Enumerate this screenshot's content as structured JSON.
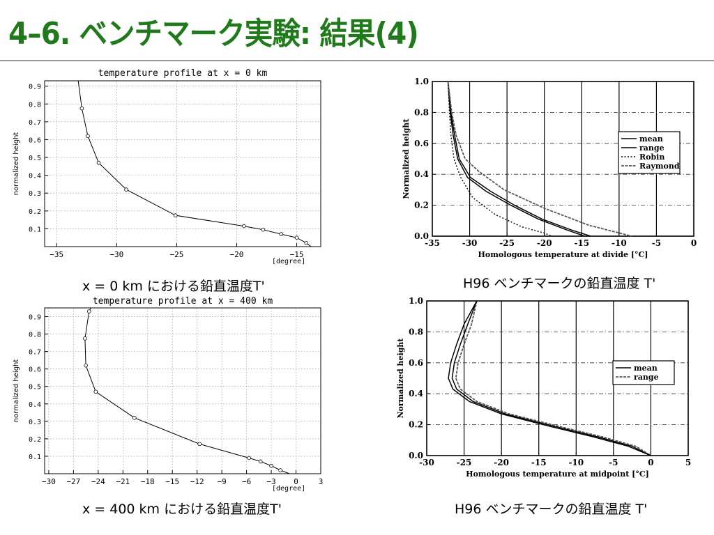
{
  "slide": {
    "title": "4–6. ベンチマーク実験: 結果(4)",
    "captions": [
      "x = 0 km における鉛直温度T'",
      "H96 ベンチマークの鉛直温度 T'",
      "x = 400 km における鉛直温度T'",
      "H96 ベンチマークの鉛直温度 T'"
    ],
    "colors": {
      "title": "#207a1c",
      "rule": "#9a9a9a"
    }
  },
  "chart_data": [
    {
      "type": "line",
      "title": "temperature   profile at x = 0 km",
      "ylabel": "normalized height",
      "xunit": "[degree]",
      "xlim": [
        -36,
        -13
      ],
      "ylim": [
        0,
        0.93
      ],
      "xticks": [
        -35,
        -30,
        -25,
        -20,
        -15
      ],
      "yticks": [
        0.1,
        0.2,
        0.3,
        0.4,
        0.5,
        0.6,
        0.7,
        0.8,
        0.9
      ],
      "xtick_labels": [
        "−35",
        "−30",
        "−25",
        "−20",
        "−15"
      ],
      "ytick_labels": [
        "0.1",
        "0.2",
        "0.3",
        "0.4",
        "0.5",
        "0.6",
        "0.7",
        "0.8",
        "0.9"
      ],
      "grid": true,
      "series": [
        {
          "x": [
            -13.8,
            -14.2,
            -15.0,
            -16.3,
            -17.8,
            -19.4,
            -25.1,
            -29.2,
            -31.5,
            -32.4,
            -32.9,
            -33.2
          ],
          "y": [
            0.0,
            0.02,
            0.05,
            0.07,
            0.095,
            0.115,
            0.175,
            0.32,
            0.47,
            0.62,
            0.775,
            0.93
          ],
          "markers": true
        }
      ]
    },
    {
      "type": "line",
      "ylabel": "Normalized height",
      "xlabel": "Homologous temperature at divide  [°C]",
      "xlim": [
        -35,
        0
      ],
      "ylim": [
        0,
        1
      ],
      "xticks": [
        -35,
        -30,
        -25,
        -20,
        -15,
        -10,
        -5,
        0
      ],
      "yticks": [
        0.0,
        0.2,
        0.4,
        0.6,
        0.8,
        1.0
      ],
      "xtick_labels": [
        "-35",
        "-30",
        "-25",
        "-20",
        "-15",
        "-10",
        "-5",
        "0"
      ],
      "ytick_labels": [
        "0.0",
        "0.2",
        "0.4",
        "0.6",
        "0.8",
        "1.0"
      ],
      "grid": true,
      "legend": "right",
      "series": [
        {
          "name": "mean",
          "dash": "solid",
          "x": [
            -32.9,
            -32.6,
            -32.2,
            -31.6,
            -30.3,
            -27.8,
            -24.5,
            -20.8,
            -17.0,
            -14.6
          ],
          "y": [
            1.0,
            0.8,
            0.65,
            0.5,
            0.38,
            0.29,
            0.2,
            0.11,
            0.04,
            0.0
          ]
        },
        {
          "name": "range",
          "dash": "solid",
          "x": [
            -32.9,
            -32.5,
            -32.0,
            -31.4,
            -29.9,
            -27.2,
            -24.0,
            -20.3,
            -16.4,
            -13.8
          ],
          "y": [
            1.0,
            0.8,
            0.65,
            0.5,
            0.38,
            0.29,
            0.2,
            0.11,
            0.04,
            0.0
          ]
        },
        {
          "name": "Robin",
          "dash": "dotted",
          "x": [
            -32.9,
            -32.7,
            -32.5,
            -32.1,
            -31.2,
            -29.6,
            -26.6,
            -23.0,
            -20.0,
            -19.0
          ],
          "y": [
            1.0,
            0.8,
            0.65,
            0.5,
            0.38,
            0.25,
            0.14,
            0.06,
            0.02,
            0.0
          ]
        },
        {
          "name": "Raymond",
          "dash": "gray",
          "x": [
            -32.9,
            -32.4,
            -31.8,
            -30.6,
            -28.8,
            -25.4,
            -20.0,
            -14.0,
            -8.3
          ],
          "y": [
            1.0,
            0.8,
            0.65,
            0.5,
            0.42,
            0.3,
            0.18,
            0.07,
            0.0
          ]
        }
      ]
    },
    {
      "type": "line",
      "title": "temperature   profile at x = 400 km",
      "ylabel": "normalized height",
      "xunit": "[degree]",
      "xlim": [
        -30.5,
        3
      ],
      "ylim": [
        0,
        0.95
      ],
      "xticks": [
        -30,
        -27,
        -24,
        -21,
        -18,
        -15,
        -12,
        -9,
        -6,
        -3,
        0,
        3
      ],
      "yticks": [
        0.1,
        0.2,
        0.3,
        0.4,
        0.5,
        0.6,
        0.7,
        0.8,
        0.9
      ],
      "xtick_labels": [
        "−30",
        "−27",
        "−24",
        "−21",
        "−18",
        "−15",
        "−12",
        "−9",
        "−6",
        "−3",
        "0",
        "3"
      ],
      "ytick_labels": [
        "0.1",
        "0.2",
        "0.3",
        "0.4",
        "0.5",
        "0.6",
        "0.7",
        "0.8",
        "0.9"
      ],
      "grid": true,
      "series": [
        {
          "x": [
            -0.8,
            -1.9,
            -3.0,
            -4.3,
            -5.7,
            -11.7,
            -19.6,
            -24.3,
            -25.5,
            -25.6,
            -25.1,
            -24.9
          ],
          "y": [
            0.0,
            0.02,
            0.045,
            0.07,
            0.09,
            0.17,
            0.32,
            0.47,
            0.62,
            0.775,
            0.93,
            0.95
          ],
          "markers": true
        }
      ]
    },
    {
      "type": "line",
      "ylabel": "Normalized height",
      "xlabel": "Homologous temperature at midpoint  [°C]",
      "xlim": [
        -30,
        5
      ],
      "ylim": [
        0,
        1
      ],
      "xticks": [
        -30,
        -25,
        -20,
        -15,
        -10,
        -5,
        0,
        5
      ],
      "yticks": [
        0.0,
        0.2,
        0.4,
        0.6,
        0.8,
        1.0
      ],
      "xtick_labels": [
        "-30",
        "-25",
        "-20",
        "-15",
        "-10",
        "-5",
        "0",
        "5"
      ],
      "ytick_labels": [
        "0.0",
        "0.2",
        "0.4",
        "0.6",
        "0.8",
        "1.0"
      ],
      "grid": true,
      "legend": "right",
      "series": [
        {
          "name": "mean",
          "dash": "solid",
          "x": [
            -23.3,
            -24.5,
            -25.5,
            -26.3,
            -26.6,
            -26.0,
            -23.8,
            -19.5,
            -13.0,
            -7.0,
            -2.5,
            0.0
          ],
          "y": [
            1.0,
            0.85,
            0.72,
            0.6,
            0.5,
            0.43,
            0.35,
            0.27,
            0.19,
            0.12,
            0.06,
            0.0
          ]
        },
        {
          "name": "range",
          "dash": "gray",
          "x": [
            -23.3,
            -24.0,
            -25.0,
            -25.8,
            -26.1,
            -25.5,
            -23.3,
            -19.0,
            -12.4,
            -6.4,
            -2.0,
            0.0
          ],
          "y": [
            1.0,
            0.85,
            0.72,
            0.6,
            0.5,
            0.43,
            0.35,
            0.27,
            0.19,
            0.12,
            0.06,
            0.0
          ]
        },
        {
          "name": "",
          "dash": "solid",
          "x": [
            -23.3,
            -25.0,
            -26.0,
            -26.8,
            -27.1,
            -26.5,
            -24.3,
            -20.0,
            -13.6,
            -7.6,
            -3.0,
            0.0
          ],
          "y": [
            1.0,
            0.85,
            0.72,
            0.6,
            0.5,
            0.43,
            0.35,
            0.27,
            0.19,
            0.12,
            0.06,
            0.0
          ]
        }
      ]
    }
  ]
}
